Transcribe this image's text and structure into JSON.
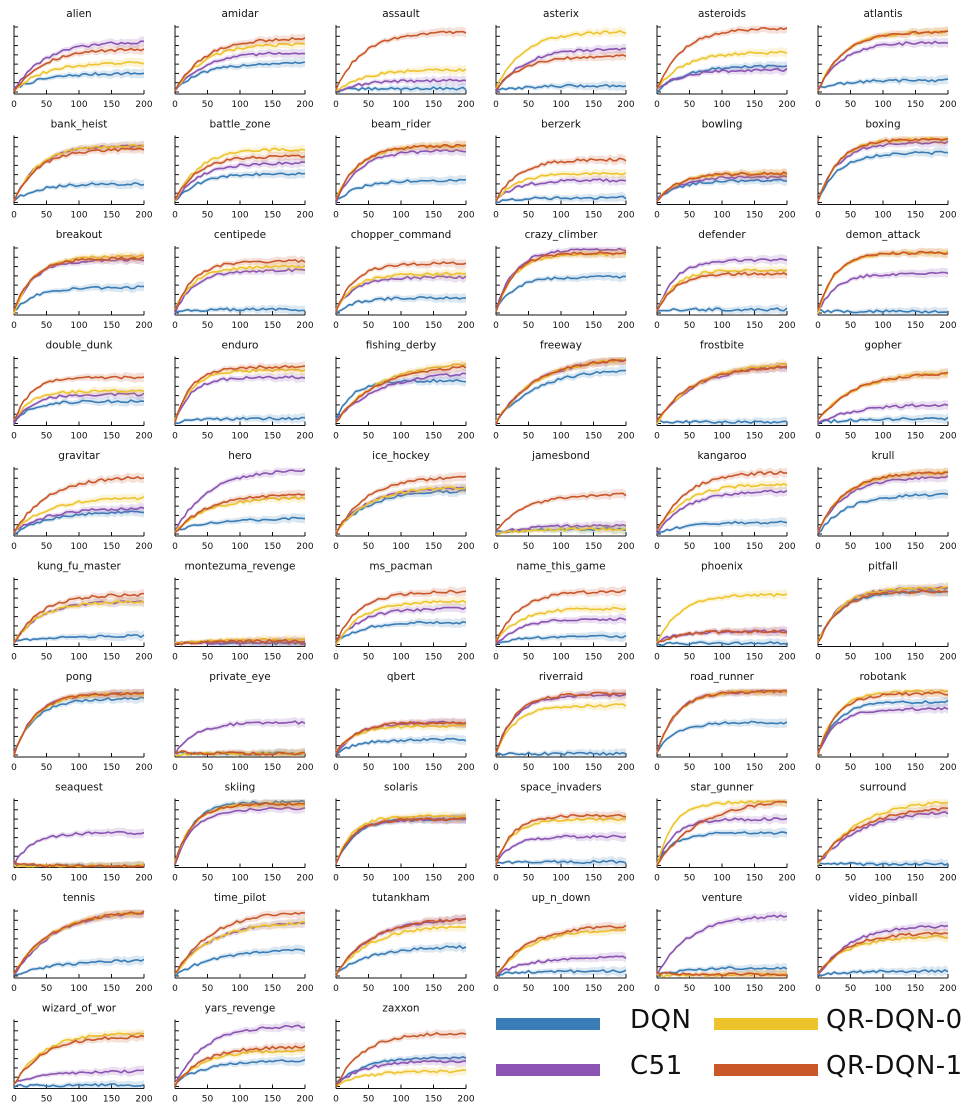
{
  "figure": {
    "x_ticks": [
      0,
      50,
      100,
      150,
      200
    ],
    "xlim": [
      0,
      200
    ],
    "colors": {
      "DQN": "#3a7db6",
      "C51": "#8b54b3",
      "QR-DQN-0": "#eec42d",
      "QR-DQN-1": "#c9572a"
    }
  },
  "legend": {
    "items": [
      {
        "label": "DQN",
        "color": "#3a7db6"
      },
      {
        "label": "QR-DQN-0",
        "color": "#eec42d"
      },
      {
        "label": "C51",
        "color": "#8b54b3"
      },
      {
        "label": "QR-DQN-1",
        "color": "#c9572a"
      }
    ]
  },
  "chart_data": [
    {
      "type": "line",
      "title": "alien",
      "values": [
        0.3,
        0.75,
        0.45,
        0.65
      ]
    },
    {
      "type": "line",
      "title": "amidar",
      "values": [
        0.45,
        0.6,
        0.72,
        0.8
      ]
    },
    {
      "type": "line",
      "title": "assault",
      "values": [
        0.08,
        0.2,
        0.35,
        0.9
      ]
    },
    {
      "type": "line",
      "title": "asterix",
      "values": [
        0.12,
        0.65,
        0.9,
        0.55
      ]
    },
    {
      "type": "line",
      "title": "asteroids",
      "values": [
        0.4,
        0.35,
        0.6,
        0.95
      ]
    },
    {
      "type": "line",
      "title": "atlantis",
      "values": [
        0.2,
        0.75,
        0.9,
        0.9
      ]
    },
    {
      "type": "line",
      "title": "bank_heist",
      "values": [
        0.3,
        0.85,
        0.85,
        0.8
      ]
    },
    {
      "type": "line",
      "title": "battle_zone",
      "values": [
        0.45,
        0.6,
        0.8,
        0.7
      ]
    },
    {
      "type": "line",
      "title": "beam_rider",
      "values": [
        0.35,
        0.78,
        0.85,
        0.85
      ]
    },
    {
      "type": "line",
      "title": "berzerk",
      "values": [
        0.1,
        0.35,
        0.45,
        0.65
      ]
    },
    {
      "type": "line",
      "title": "bowling",
      "values": [
        0.35,
        0.4,
        0.45,
        0.45
      ]
    },
    {
      "type": "line",
      "title": "boxing",
      "values": [
        0.75,
        0.9,
        0.95,
        0.95
      ]
    },
    {
      "type": "line",
      "title": "breakout",
      "values": [
        0.4,
        0.8,
        0.85,
        0.82
      ]
    },
    {
      "type": "line",
      "title": "centipede",
      "values": [
        0.08,
        0.65,
        0.7,
        0.78
      ]
    },
    {
      "type": "line",
      "title": "chopper_command",
      "values": [
        0.25,
        0.55,
        0.6,
        0.75
      ]
    },
    {
      "type": "line",
      "title": "crazy_climber",
      "values": [
        0.55,
        0.95,
        0.88,
        0.9
      ]
    },
    {
      "type": "line",
      "title": "defender",
      "values": [
        0.08,
        0.8,
        0.65,
        0.6
      ]
    },
    {
      "type": "line",
      "title": "demon_attack",
      "values": [
        0.05,
        0.6,
        0.9,
        0.9
      ]
    },
    {
      "type": "line",
      "title": "double_dunk",
      "values": [
        0.35,
        0.45,
        0.5,
        0.7
      ]
    },
    {
      "type": "line",
      "title": "enduro",
      "values": [
        0.1,
        0.7,
        0.8,
        0.85
      ]
    },
    {
      "type": "line",
      "title": "fishing_derby",
      "values": [
        0.65,
        0.75,
        0.88,
        0.85
      ]
    },
    {
      "type": "line",
      "title": "freeway",
      "values": [
        0.8,
        0.95,
        0.95,
        0.95
      ]
    },
    {
      "type": "line",
      "title": "frostbite",
      "values": [
        0.05,
        0.85,
        0.88,
        0.85
      ]
    },
    {
      "type": "line",
      "title": "gopher",
      "values": [
        0.1,
        0.3,
        0.75,
        0.75
      ]
    },
    {
      "type": "line",
      "title": "gravitar",
      "values": [
        0.35,
        0.4,
        0.55,
        0.85
      ]
    },
    {
      "type": "line",
      "title": "hero",
      "values": [
        0.25,
        0.95,
        0.55,
        0.6
      ]
    },
    {
      "type": "line",
      "title": "ice_hockey",
      "values": [
        0.65,
        0.7,
        0.7,
        0.85
      ]
    },
    {
      "type": "line",
      "title": "jamesbond",
      "values": [
        0.1,
        0.15,
        0.1,
        0.6
      ]
    },
    {
      "type": "line",
      "title": "kangaroo",
      "values": [
        0.2,
        0.65,
        0.75,
        0.92
      ]
    },
    {
      "type": "line",
      "title": "krull",
      "values": [
        0.6,
        0.85,
        0.92,
        0.92
      ]
    },
    {
      "type": "line",
      "title": "kung_fu_master",
      "values": [
        0.15,
        0.65,
        0.65,
        0.75
      ]
    },
    {
      "type": "line",
      "title": "montezuma_revenge",
      "values": [
        0.05,
        0.05,
        0.1,
        0.08
      ]
    },
    {
      "type": "line",
      "title": "ms_pacman",
      "values": [
        0.35,
        0.55,
        0.65,
        0.8
      ]
    },
    {
      "type": "line",
      "title": "name_this_game",
      "values": [
        0.15,
        0.4,
        0.55,
        0.8
      ]
    },
    {
      "type": "line",
      "title": "phoenix",
      "values": [
        0.05,
        0.22,
        0.75,
        0.22
      ]
    },
    {
      "type": "line",
      "title": "pitfall",
      "values": [
        0.8,
        0.85,
        0.85,
        0.8
      ]
    },
    {
      "type": "line",
      "title": "pong",
      "values": [
        0.85,
        0.92,
        0.92,
        0.92
      ]
    },
    {
      "type": "line",
      "title": "private_eye",
      "values": [
        0.05,
        0.5,
        0.05,
        0.05
      ]
    },
    {
      "type": "line",
      "title": "qbert",
      "values": [
        0.25,
        0.5,
        0.45,
        0.5
      ]
    },
    {
      "type": "line",
      "title": "riverraid",
      "values": [
        0.05,
        0.9,
        0.75,
        0.92
      ]
    },
    {
      "type": "line",
      "title": "road_runner",
      "values": [
        0.5,
        0.95,
        0.95,
        0.95
      ]
    },
    {
      "type": "line",
      "title": "robotank",
      "values": [
        0.8,
        0.7,
        0.95,
        0.92
      ]
    },
    {
      "type": "line",
      "title": "seaquest",
      "values": [
        0.02,
        0.5,
        0.02,
        0.02
      ]
    },
    {
      "type": "line",
      "title": "skiing",
      "values": [
        0.95,
        0.85,
        0.92,
        0.92
      ]
    },
    {
      "type": "line",
      "title": "solaris",
      "values": [
        0.7,
        0.7,
        0.75,
        0.7
      ]
    },
    {
      "type": "line",
      "title": "space_invaders",
      "values": [
        0.08,
        0.45,
        0.7,
        0.75
      ]
    },
    {
      "type": "line",
      "title": "star_gunner",
      "values": [
        0.5,
        0.7,
        0.95,
        0.95
      ]
    },
    {
      "type": "line",
      "title": "surround",
      "values": [
        0.05,
        0.8,
        0.95,
        0.85
      ]
    },
    {
      "type": "line",
      "title": "tennis",
      "values": [
        0.25,
        0.95,
        0.95,
        0.95
      ]
    },
    {
      "type": "line",
      "title": "time_pilot",
      "values": [
        0.4,
        0.8,
        0.8,
        0.95
      ]
    },
    {
      "type": "line",
      "title": "tutankham",
      "values": [
        0.45,
        0.85,
        0.75,
        0.85
      ]
    },
    {
      "type": "line",
      "title": "up_n_down",
      "values": [
        0.1,
        0.3,
        0.7,
        0.75
      ]
    },
    {
      "type": "line",
      "title": "venture",
      "values": [
        0.15,
        0.9,
        0.05,
        0.05
      ]
    },
    {
      "type": "line",
      "title": "video_pinball",
      "values": [
        0.1,
        0.75,
        0.6,
        0.65
      ]
    },
    {
      "type": "line",
      "title": "wizard_of_wor",
      "values": [
        0.05,
        0.25,
        0.8,
        0.75
      ]
    },
    {
      "type": "line",
      "title": "yars_revenge",
      "values": [
        0.4,
        0.9,
        0.55,
        0.6
      ]
    },
    {
      "type": "line",
      "title": "zaxxon",
      "values": [
        0.45,
        0.4,
        0.25,
        0.8
      ]
    }
  ]
}
